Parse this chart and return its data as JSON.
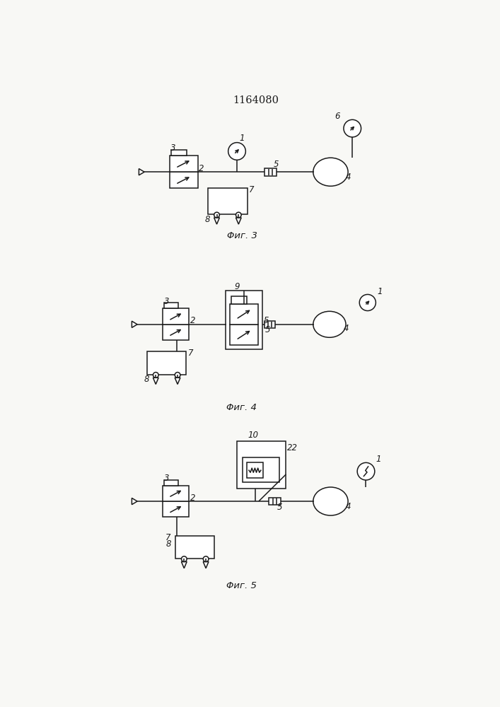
{
  "title": "1164080",
  "bg_color": "#f8f8f5",
  "line_color": "#1a1a1a",
  "fig3_label": "Φиг. 3",
  "fig4_label": "Φиг. 4",
  "fig5_label": "Φиг. 5"
}
